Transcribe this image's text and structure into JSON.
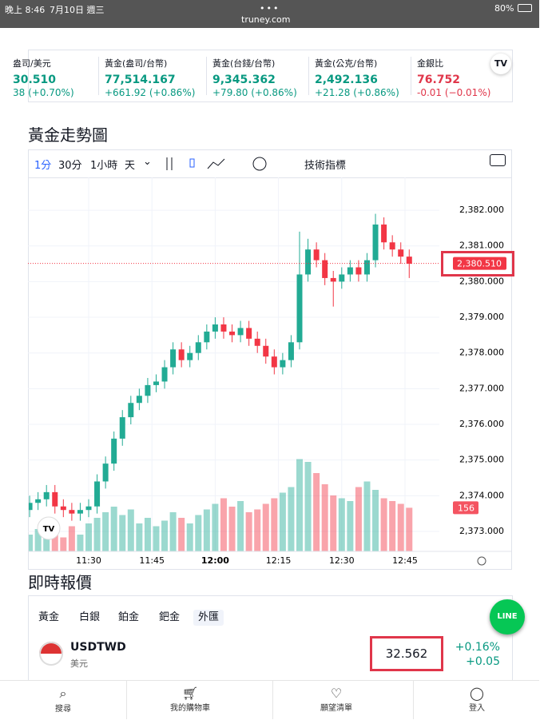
{
  "status_bar": {
    "time": "晚上 8:46",
    "date": "7月10日 週三",
    "url": "truney.com",
    "battery": "80%"
  },
  "tickers": [
    {
      "name": "盎司/美元",
      "price": "30.510",
      "change": "38 (+0.70%)"
    },
    {
      "name": "黃金(盎司/台幣)",
      "price": "77,514.167",
      "change": "+661.92 (+0.86%)"
    },
    {
      "name": "黃金(台錢/台幣)",
      "price": "9,345.362",
      "change": "+79.80 (+0.86%)"
    },
    {
      "name": "黃金(公克/台幣)",
      "price": "2,492.136",
      "change": "+21.28 (+0.86%)"
    },
    {
      "name": "金銀比",
      "price": "76.752",
      "change": "-0.01 (−0.01%)"
    }
  ],
  "section_title": "黃金走勢圖",
  "toolbar": {
    "intervals": [
      "1分",
      "30分",
      "1小時",
      "天"
    ],
    "indicators": "技術指標"
  },
  "chart_data": {
    "type": "candlestick",
    "open": [
      2373.6,
      2373.8,
      2373.9,
      2374.1,
      2373.7,
      2373.6,
      2373.5,
      2373.6,
      2373.7,
      2374.4,
      2374.9,
      2375.6,
      2376.2,
      2376.6,
      2376.8,
      2377.1,
      2377.2,
      2377.6,
      2378.1,
      2377.8,
      2378.0,
      2378.3,
      2378.6,
      2378.8,
      2378.6,
      2378.5,
      2378.7,
      2378.4,
      2378.2,
      2377.9,
      2377.6,
      2377.8,
      2378.3,
      2380.2,
      2380.9,
      2380.6,
      2380.1,
      2380.0,
      2380.2,
      2380.4,
      2380.2,
      2380.6,
      2381.6,
      2381.1,
      2380.9,
      2380.7
    ],
    "high": [
      2374.0,
      2374.1,
      2374.3,
      2374.3,
      2373.9,
      2373.8,
      2373.8,
      2373.9,
      2374.6,
      2375.1,
      2375.8,
      2376.4,
      2376.8,
      2377.0,
      2377.3,
      2377.4,
      2377.8,
      2378.3,
      2378.3,
      2378.2,
      2378.5,
      2378.8,
      2379.0,
      2379.0,
      2378.8,
      2378.9,
      2378.9,
      2378.6,
      2378.4,
      2378.1,
      2378.0,
      2378.5,
      2381.4,
      2381.2,
      2381.1,
      2380.8,
      2380.3,
      2380.4,
      2380.6,
      2380.6,
      2380.8,
      2381.9,
      2381.8,
      2381.3,
      2381.1,
      2380.9
    ],
    "low": [
      2373.4,
      2373.6,
      2373.7,
      2373.5,
      2373.4,
      2373.3,
      2373.3,
      2373.4,
      2373.5,
      2374.2,
      2374.7,
      2375.4,
      2376.0,
      2376.4,
      2376.6,
      2376.9,
      2377.0,
      2377.4,
      2377.6,
      2377.6,
      2377.8,
      2378.1,
      2378.4,
      2378.4,
      2378.3,
      2378.3,
      2378.2,
      2378.0,
      2377.7,
      2377.4,
      2377.4,
      2377.6,
      2378.1,
      2380.0,
      2380.4,
      2379.9,
      2379.3,
      2379.8,
      2380.0,
      2380.0,
      2380.0,
      2380.4,
      2380.9,
      2380.7,
      2380.5,
      2380.1
    ],
    "close": [
      2373.8,
      2373.9,
      2374.1,
      2373.7,
      2373.6,
      2373.5,
      2373.6,
      2373.7,
      2374.4,
      2374.9,
      2375.6,
      2376.2,
      2376.6,
      2376.8,
      2377.1,
      2377.2,
      2377.6,
      2378.1,
      2377.8,
      2378.0,
      2378.3,
      2378.6,
      2378.8,
      2378.6,
      2378.5,
      2378.7,
      2378.4,
      2378.2,
      2377.9,
      2377.6,
      2377.8,
      2378.3,
      2380.2,
      2380.9,
      2380.6,
      2380.1,
      2380.0,
      2380.2,
      2380.4,
      2380.2,
      2380.6,
      2381.6,
      2381.1,
      2380.9,
      2380.7,
      2380.5
    ],
    "volume": [
      60,
      80,
      110,
      70,
      50,
      90,
      60,
      100,
      120,
      140,
      160,
      130,
      150,
      100,
      120,
      90,
      110,
      140,
      120,
      100,
      130,
      150,
      170,
      190,
      160,
      180,
      140,
      150,
      170,
      190,
      210,
      230,
      330,
      320,
      280,
      240,
      200,
      190,
      180,
      230,
      250,
      220,
      190,
      180,
      170,
      156
    ],
    "xticks": [
      {
        "value": 7,
        "label": "11:30"
      },
      {
        "value": 14.5,
        "label": "11:45"
      },
      {
        "value": 22,
        "label": "12:00"
      },
      {
        "value": 29.5,
        "label": "12:15"
      },
      {
        "value": 37,
        "label": "12:30"
      },
      {
        "value": 44.5,
        "label": "12:45"
      }
    ],
    "ylim": [
      2372.44,
      2382.92
    ],
    "yticks": [
      {
        "value": 2373,
        "label": "2,373.000"
      },
      {
        "value": 2374,
        "label": "2,374.000"
      },
      {
        "value": 2375,
        "label": "2,375.000"
      },
      {
        "value": 2376,
        "label": "2,376.000"
      },
      {
        "value": 2377,
        "label": "2,377.000"
      },
      {
        "value": 2378,
        "label": "2,378.000"
      },
      {
        "value": 2379,
        "label": "2,379.000"
      },
      {
        "value": 2380,
        "label": "2,380.000"
      },
      {
        "value": 2381,
        "label": "2,381.000"
      },
      {
        "value": 2382,
        "label": "2,382.000"
      }
    ],
    "last_price": {
      "value": 2380.51,
      "label": "2,380.510"
    },
    "last_volume": 156,
    "up_color": "#22ab94",
    "down_color": "#f23645"
  },
  "quotes_title": "即時報價",
  "tabs": [
    "黃金",
    "白銀",
    "鉑金",
    "鈀金",
    "外匯"
  ],
  "selected_tab": 4,
  "quote": {
    "symbol": "USDTWD",
    "name": "美元",
    "price": "32.562",
    "change_pct": "+0.16%",
    "change": "+0.05"
  },
  "nav": [
    "搜尋",
    "我的購物車",
    "願望清單",
    "登入"
  ]
}
